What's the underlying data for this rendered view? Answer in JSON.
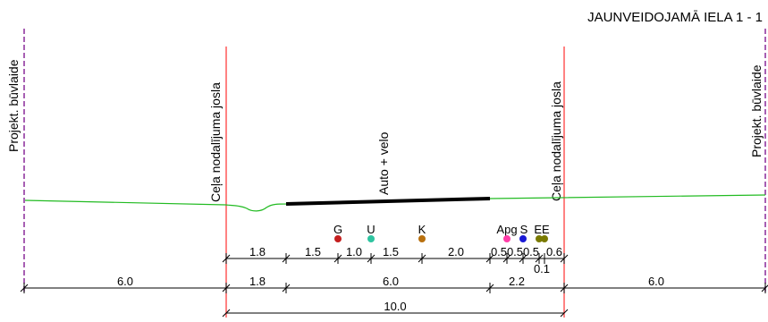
{
  "title": "JAUNVEIDOJAMĀ IELA 1 - 1",
  "labels": {
    "building_line_left": "Projekt. būvlaide",
    "building_line_right": "Projekt. būvlaide",
    "row_left": "Ceļa nodalījuma josla",
    "row_right": "Ceļa nodalījuma josla",
    "carriageway": "Auto + velo"
  },
  "utilities": [
    {
      "code": "G",
      "color": "#c41e1e"
    },
    {
      "code": "U",
      "color": "#2ec4a0"
    },
    {
      "code": "K",
      "color": "#b8700e"
    },
    {
      "code": "Apg",
      "color": "#ff3da8"
    },
    {
      "code": "S",
      "color": "#1a1ad6"
    },
    {
      "code": "EE",
      "color": "#7a7a00"
    }
  ],
  "dimensions": {
    "row1": [
      "1.8",
      "1.5",
      "1.0",
      "1.5",
      "2.0",
      "0.5",
      "0.5",
      "0.5",
      "0.6"
    ],
    "row1_extra": "0.1",
    "row2": [
      "6.0",
      "1.8",
      "6.0",
      "2.2",
      "6.0"
    ],
    "total": "10.0"
  },
  "colors": {
    "ground": "#22bb22",
    "row_line": "#ff3030",
    "building_line": "#8a2a9a",
    "road": "#000000"
  }
}
